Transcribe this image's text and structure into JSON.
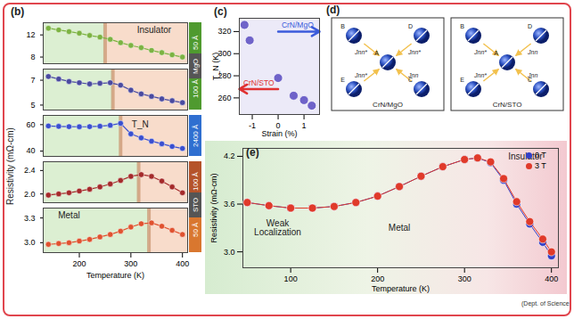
{
  "chart_data": [
    {
      "type": "line",
      "title": "(b)",
      "y_label": "Resistivity (mΩ-cm)",
      "x_label": "Temperature (K)",
      "xlim": [
        130,
        410
      ],
      "xticks": [
        200,
        300,
        400
      ],
      "panels": [
        {
          "label": "50 Å",
          "substrate": "MgO",
          "color": "#7cb342",
          "ylim": [
            6.8,
            14.2
          ],
          "yticks": [
            8,
            12
          ],
          "tn": 250,
          "x": [
            140,
            160,
            180,
            200,
            220,
            240,
            260,
            280,
            300,
            320,
            340,
            360,
            380,
            400
          ],
          "values": [
            13.2,
            12.9,
            12.6,
            12.3,
            11.9,
            11.6,
            11.2,
            10.6,
            10.1,
            9.7,
            9.2,
            8.8,
            8.4,
            8.0
          ],
          "annotations": [
            {
              "text": "Insulator",
              "x": 345,
              "y": 12.8
            }
          ]
        },
        {
          "label": "100 Å",
          "substrate": "MgO",
          "color": "#4a4aa0",
          "ylim": [
            4.6,
            7.9
          ],
          "yticks": [
            5,
            7
          ],
          "tn": 265,
          "x": [
            140,
            160,
            180,
            200,
            220,
            240,
            260,
            280,
            300,
            320,
            340,
            360,
            380,
            400
          ],
          "values": [
            7.3,
            7.1,
            6.9,
            6.8,
            6.7,
            6.75,
            6.8,
            6.6,
            6.2,
            5.9,
            5.7,
            5.5,
            5.35,
            5.2
          ],
          "annotations": []
        },
        {
          "label": "2400 Å",
          "substrate": null,
          "color": "#3a4fd0",
          "ylim": [
            36,
            67
          ],
          "yticks": [
            40,
            60
          ],
          "tn": 280,
          "x": [
            140,
            160,
            180,
            200,
            220,
            240,
            260,
            280,
            300,
            320,
            340,
            360,
            380,
            400
          ],
          "values": [
            59,
            58.7,
            58.5,
            58.4,
            58.5,
            58.8,
            59.5,
            61,
            53,
            50,
            47.5,
            45.5,
            43.5,
            42
          ],
          "annotations": [
            {
              "text": "T_N",
              "x": 318,
              "y": 60
            }
          ]
        },
        {
          "label": "100 Å",
          "substrate": "STO",
          "color": "#a52a2a",
          "ylim": [
            1.85,
            2.55
          ],
          "yticks": [
            {
              "value": 2,
              "label": "2.0"
            },
            2.4
          ],
          "tn": 315,
          "x": [
            140,
            160,
            180,
            200,
            220,
            240,
            260,
            280,
            300,
            320,
            340,
            360,
            380,
            400
          ],
          "values": [
            1.98,
            2.0,
            2.02,
            2.05,
            2.08,
            2.12,
            2.17,
            2.23,
            2.3,
            2.33,
            2.3,
            2.22,
            2.12,
            2.02
          ],
          "annotations": []
        },
        {
          "label": "50 Å",
          "substrate": "STO",
          "color": "#e0522f",
          "ylim": [
            2.88,
            3.42
          ],
          "yticks": [
            {
              "value": 3,
              "label": "3.0"
            },
            3.3
          ],
          "tn": 335,
          "x": [
            140,
            160,
            180,
            200,
            220,
            240,
            260,
            280,
            300,
            320,
            340,
            360,
            380,
            400
          ],
          "values": [
            2.98,
            2.99,
            3.0,
            3.02,
            3.04,
            3.07,
            3.1,
            3.14,
            3.19,
            3.23,
            3.24,
            3.2,
            3.15,
            3.1
          ],
          "annotations": [
            {
              "text": "Metal",
              "x": 180,
              "y": 3.33
            }
          ]
        }
      ]
    },
    {
      "type": "scatter",
      "title": "(c)",
      "x_label": "Strain (%)",
      "y_label": "T_N (K)",
      "xlim": [
        -1.5,
        1.6
      ],
      "xticks": [
        -1,
        0,
        1
      ],
      "ylim": [
        245,
        332
      ],
      "yticks": [
        260,
        280,
        300,
        320
      ],
      "color": "#6f63c9",
      "x": [
        -1.3,
        -1.1,
        0,
        0.6,
        1.0,
        1.3
      ],
      "values": [
        326,
        312,
        278,
        262,
        258,
        253
      ],
      "annotations": [
        {
          "text": "CrN/MgO",
          "x": 0.75,
          "y": 320,
          "color": "#3b5bdb"
        },
        {
          "text": "CrN/STO",
          "x": -0.75,
          "y": 268,
          "color": "#e03131"
        }
      ]
    },
    {
      "type": "line",
      "title": "(e)",
      "x_label": "Temperature (K)",
      "y_label": "Resistivity (mΩ-cm)",
      "xlim": [
        45,
        408
      ],
      "xticks": [
        100,
        200,
        300,
        400
      ],
      "ylim": [
        2.8,
        4.3
      ],
      "yticks": [
        {
          "value": 3,
          "label": "3.0"
        },
        3.6,
        4.2
      ],
      "x": [
        50,
        75,
        100,
        125,
        150,
        175,
        200,
        225,
        250,
        275,
        300,
        315,
        330,
        345,
        360,
        375,
        390,
        400
      ],
      "series": [
        {
          "name": "0 T",
          "color": "#3340c8",
          "values": [
            3.62,
            3.58,
            3.55,
            3.55,
            3.57,
            3.62,
            3.7,
            3.82,
            3.95,
            4.07,
            4.16,
            4.18,
            4.12,
            3.9,
            3.6,
            3.35,
            3.12,
            2.95
          ]
        },
        {
          "name": "3 T",
          "color": "#e03a2a",
          "values": [
            3.62,
            3.58,
            3.55,
            3.55,
            3.57,
            3.62,
            3.7,
            3.82,
            3.95,
            4.07,
            4.16,
            4.18,
            4.13,
            3.92,
            3.63,
            3.38,
            3.16,
            3.0
          ]
        }
      ],
      "annotations": [
        {
          "text": "Weak\nLocalization",
          "x": 85,
          "y": 3.3
        },
        {
          "text": "Metal",
          "x": 225,
          "y": 3.3
        },
        {
          "text": "Insulator",
          "x": 370,
          "y": 4.2
        }
      ]
    }
  ],
  "diagram": {
    "title": "(d)",
    "panels": [
      {
        "title": "CrN/MgO",
        "atoms": [
          "A",
          "B",
          "C",
          "D",
          "E"
        ],
        "bonds": [
          {
            "from": "A",
            "to": "B",
            "label": "Jnn*"
          },
          {
            "from": "A",
            "to": "D",
            "label": "Jnn*"
          },
          {
            "from": "A",
            "to": "E",
            "label": "Jnn*"
          },
          {
            "from": "A",
            "to": "C",
            "label": "Jnn"
          }
        ]
      },
      {
        "title": "CrN/STO",
        "atoms": [
          "A",
          "B",
          "C",
          "D",
          "E"
        ],
        "bonds": [
          {
            "from": "A",
            "to": "B",
            "label": "Jnn*"
          },
          {
            "from": "A",
            "to": "D",
            "label": "Jnn"
          },
          {
            "from": "A",
            "to": "E",
            "label": "Jnn*"
          },
          {
            "from": "A",
            "to": "C",
            "label": "Jnn"
          }
        ]
      }
    ]
  },
  "credit": "(Dept. of Science"
}
